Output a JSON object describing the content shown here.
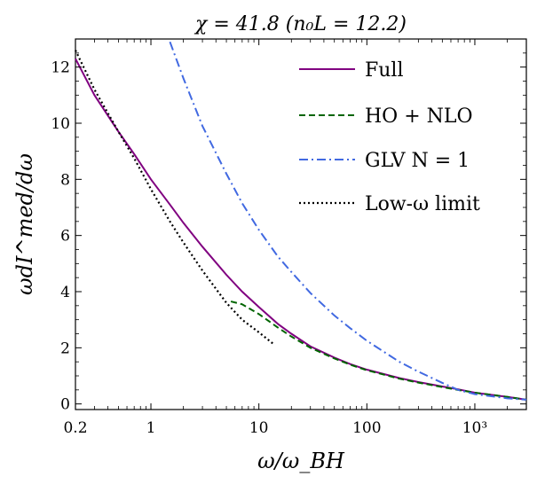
{
  "chart_data": {
    "type": "line",
    "title": "χ = 41.8 (n₀L = 12.2)",
    "xlabel": "ω/ω_BH",
    "ylabel": "ωdI^med/dω",
    "xscale": "log",
    "xlim": [
      0.2,
      3000
    ],
    "ylim": [
      -0.2,
      13
    ],
    "grid": false,
    "legend_position": "top-right",
    "x_ticks": [
      {
        "value": 0.2,
        "label": "0.2"
      },
      {
        "value": 1,
        "label": "1"
      },
      {
        "value": 10,
        "label": "10"
      },
      {
        "value": 100,
        "label": "100"
      },
      {
        "value": 1000,
        "label": "10³"
      }
    ],
    "y_ticks": [
      {
        "value": 0,
        "label": "0"
      },
      {
        "value": 2,
        "label": "2"
      },
      {
        "value": 4,
        "label": "4"
      },
      {
        "value": 6,
        "label": "6"
      },
      {
        "value": 8,
        "label": "8"
      },
      {
        "value": 10,
        "label": "10"
      },
      {
        "value": 12,
        "label": "12"
      }
    ],
    "series": [
      {
        "name": "Full",
        "color": "#800080",
        "style": "solid",
        "x": [
          0.2,
          0.3,
          0.5,
          0.7,
          1,
          1.5,
          2,
          3,
          5,
          7,
          10,
          15,
          20,
          30,
          50,
          70,
          100,
          200,
          300,
          500,
          700,
          1000,
          2000,
          3000
        ],
        "y": [
          12.3,
          11.0,
          9.7,
          8.9,
          8.0,
          7.1,
          6.45,
          5.6,
          4.6,
          4.0,
          3.45,
          2.85,
          2.5,
          2.05,
          1.65,
          1.42,
          1.22,
          0.92,
          0.78,
          0.62,
          0.52,
          0.4,
          0.25,
          0.15
        ]
      },
      {
        "name": "HO + NLO",
        "color": "#006400",
        "style": "dashed",
        "x": [
          5.5,
          7,
          10,
          15,
          20,
          30,
          50,
          70,
          100,
          200,
          300,
          500,
          700,
          1000,
          2000,
          3000
        ],
        "y": [
          3.65,
          3.55,
          3.2,
          2.72,
          2.4,
          2.0,
          1.62,
          1.4,
          1.2,
          0.9,
          0.76,
          0.6,
          0.5,
          0.4,
          0.25,
          0.15
        ]
      },
      {
        "name": "GLV N = 1",
        "color": "#4169E1",
        "style": "dashdot",
        "x": [
          1.5,
          2,
          3,
          5,
          7,
          10,
          15,
          20,
          30,
          50,
          70,
          100,
          200,
          300,
          500,
          700,
          1000,
          2000,
          3000
        ],
        "y": [
          12.9,
          11.6,
          9.9,
          8.2,
          7.15,
          6.2,
          5.25,
          4.7,
          3.95,
          3.15,
          2.7,
          2.25,
          1.5,
          1.15,
          0.75,
          0.5,
          0.35,
          0.2,
          0.15
        ]
      },
      {
        "name": "Low-ω limit",
        "color": "#000000",
        "style": "dotted",
        "x": [
          0.2,
          0.3,
          0.5,
          0.7,
          1,
          1.5,
          2,
          3,
          5,
          7,
          10,
          14
        ],
        "y": [
          12.6,
          11.2,
          9.7,
          8.75,
          7.65,
          6.5,
          5.75,
          4.75,
          3.6,
          3.0,
          2.55,
          2.1
        ]
      }
    ]
  }
}
